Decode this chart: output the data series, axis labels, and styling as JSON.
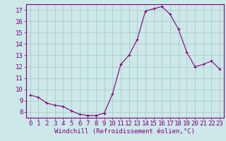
{
  "x": [
    0,
    1,
    2,
    3,
    4,
    5,
    6,
    7,
    8,
    9,
    10,
    11,
    12,
    13,
    14,
    15,
    16,
    17,
    18,
    19,
    20,
    21,
    22,
    23
  ],
  "y": [
    9.5,
    9.3,
    8.8,
    8.6,
    8.5,
    8.1,
    7.8,
    7.7,
    7.7,
    7.9,
    9.6,
    12.2,
    13.0,
    14.4,
    16.9,
    17.1,
    17.3,
    16.6,
    15.3,
    13.3,
    12.0,
    12.2,
    12.5,
    11.8
  ],
  "ylim": [
    7.5,
    17.5
  ],
  "yticks": [
    8,
    9,
    10,
    11,
    12,
    13,
    14,
    15,
    16,
    17
  ],
  "xlim": [
    -0.5,
    23.5
  ],
  "xticks": [
    0,
    1,
    2,
    3,
    4,
    5,
    6,
    7,
    8,
    9,
    10,
    11,
    12,
    13,
    14,
    15,
    16,
    17,
    18,
    19,
    20,
    21,
    22,
    23
  ],
  "xlabel": "Windchill (Refroidissement éolien,°C)",
  "line_color": "#800080",
  "marker": "+",
  "bg_color": "#cce8e8",
  "grid_color": "#aacccc",
  "axis_color": "#800080",
  "tick_color": "#800080",
  "label_color": "#800080",
  "font": "monospace",
  "fontsize_xlabel": 6.5,
  "fontsize_ticks": 6.5
}
